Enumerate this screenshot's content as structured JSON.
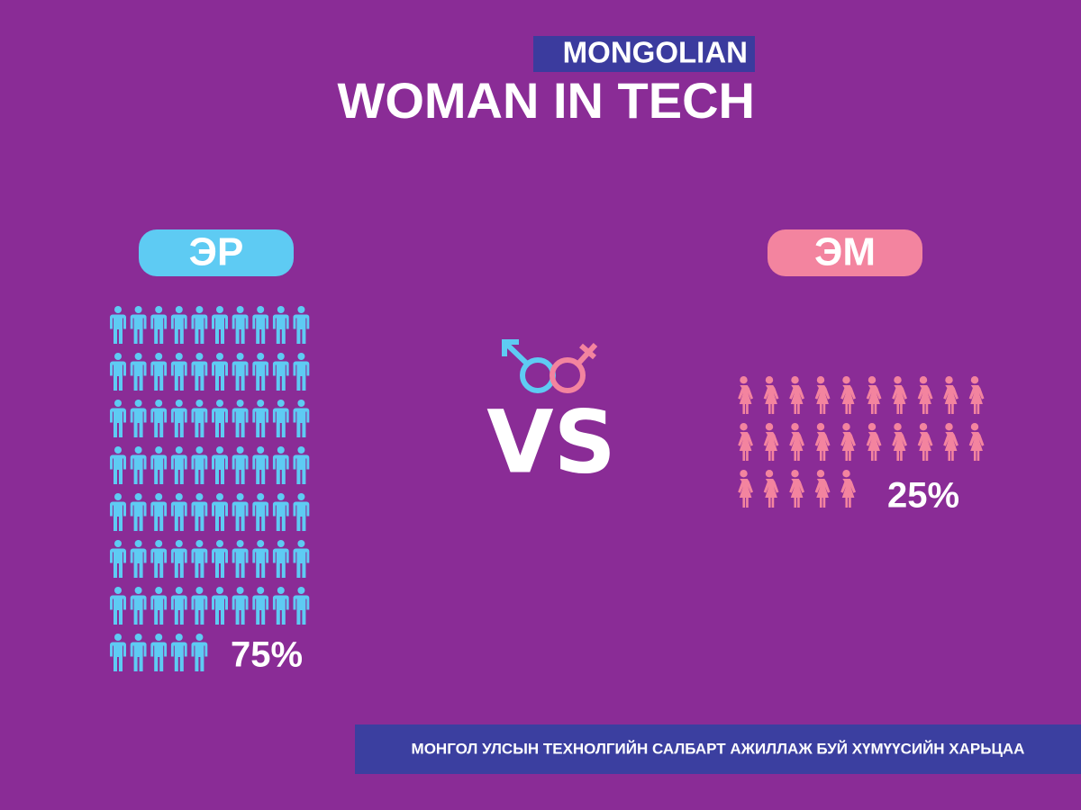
{
  "chart_data": {
    "type": "pictograph",
    "subtitle": "MONGOLIAN",
    "title": "WOMAN IN TECH",
    "annotation": "VS",
    "caption": "МОНГОЛ УЛСЫН ТЕХНОЛГИЙН САЛБАРТ АЖИЛЛАЖ БУЙ  ХҮМҮҮСИЙН ХАРЬЦАА",
    "categories": [
      "ЭР",
      "ЭМ"
    ],
    "values": [
      75,
      25
    ],
    "value_labels": [
      "75%",
      "25%"
    ],
    "colors": [
      "#5ecbf3",
      "#f3849f"
    ]
  }
}
